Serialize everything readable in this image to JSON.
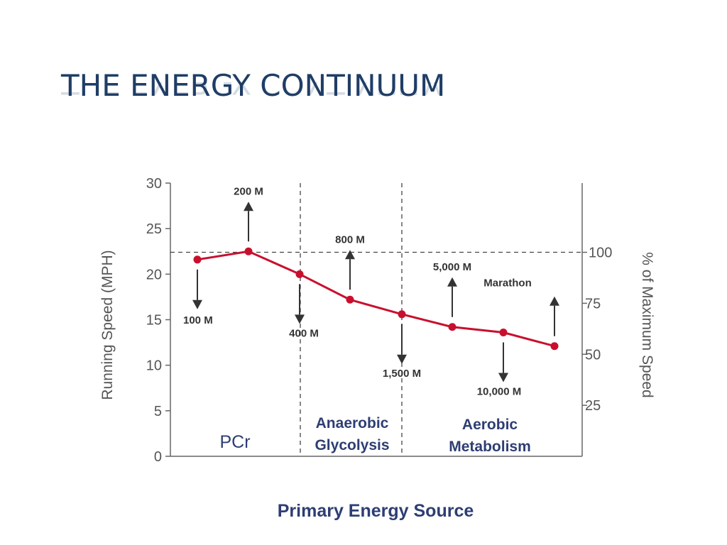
{
  "slide": {
    "title": "THE ENERGY CONTINUUM"
  },
  "chart_data": {
    "type": "line",
    "xlabel": "Primary Energy Source",
    "ylabel": "Running Speed (MPH)",
    "y2label": "% of Maximum Speed",
    "ylim": [
      0,
      30
    ],
    "yticks": [
      "0",
      "5",
      "10",
      "15",
      "20",
      "25",
      "30"
    ],
    "y2ticks": [
      {
        "label": "100",
        "value": 22.4
      },
      {
        "label": "75",
        "value": 16.8
      },
      {
        "label": "50",
        "value": 11.2
      },
      {
        "label": "25",
        "value": 5.6
      }
    ],
    "reference_line": {
      "label": "100% of maximum speed",
      "y": 22.4
    },
    "color": "#c8102e",
    "series": [
      {
        "points": [
          {
            "label": "100 M",
            "y": 21.6,
            "arrow": "down"
          },
          {
            "label": "200 M",
            "y": 22.5,
            "arrow": "up"
          },
          {
            "label": "400 M",
            "y": 20.0,
            "arrow": "down"
          },
          {
            "label": "800 M",
            "y": 17.2,
            "arrow": "up"
          },
          {
            "label": "1,500 M",
            "y": 15.6,
            "arrow": "down"
          },
          {
            "label": "5,000 M",
            "y": 14.2,
            "arrow": "up"
          },
          {
            "label": "10,000 M",
            "y": 13.6,
            "arrow": "down"
          },
          {
            "label": "Marathon",
            "y": 12.1,
            "arrow": "up"
          }
        ]
      }
    ],
    "regions": [
      {
        "label": "PCr",
        "lines": [
          "PCr"
        ]
      },
      {
        "label": "Anaerobic Glycolysis",
        "lines": [
          "Anaerobic",
          "Glycolysis"
        ]
      },
      {
        "label": "Aerobic Metabolism",
        "lines": [
          "Aerobic",
          "Metabolism"
        ]
      }
    ],
    "region_boundaries": [
      "between 400 M and 800 M",
      "at 1,500 M"
    ]
  }
}
